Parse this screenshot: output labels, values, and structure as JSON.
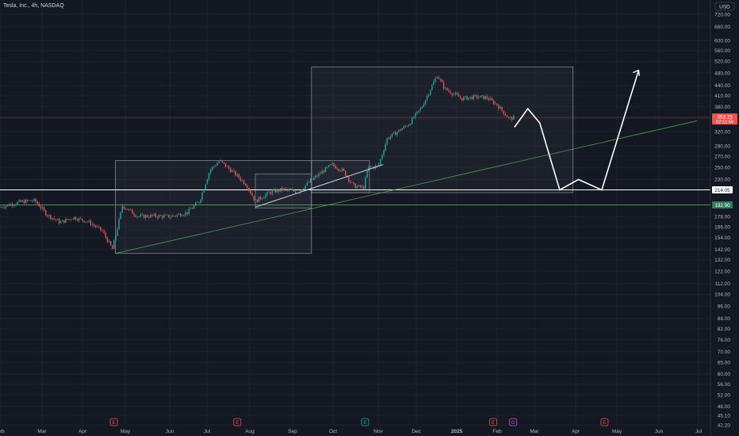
{
  "symbol": {
    "title": "Tesla, Inc., 4h, NASDAQ"
  },
  "currency_button": "USD",
  "colors": {
    "background": "#141823",
    "up": "#26a69a",
    "down": "#ef5350",
    "annotation": "#ffffff",
    "trendline": "#4caf50",
    "box_fill": "rgba(120,123,134,0.08)",
    "box_stroke": "#9598a1"
  },
  "price_tags": {
    "current": {
      "price": "353.15",
      "countdown": "02:11:56",
      "color": "#ef5350"
    },
    "horizontal_level": {
      "price": "214.05"
    },
    "support_level": {
      "price": "192.90",
      "color": "#2e7d5b"
    }
  },
  "chart_data": {
    "type": "candlestick",
    "title": "Tesla, Inc., 4h, NASDAQ",
    "y_axis": {
      "scale": "log",
      "tick_labels": [
        "720.00",
        "660.00",
        "600.00",
        "560.00",
        "520.00",
        "480.00",
        "440.00",
        "410.00",
        "380.00",
        "350.00",
        "320.00",
        "290.00",
        "270.00",
        "250.00",
        "230.00",
        "214.05",
        "192.90",
        "178.00",
        "166.00",
        "154.00",
        "142.00",
        "132.00",
        "122.00",
        "112.00",
        "104.00",
        "96.00",
        "88.00",
        "82.00",
        "76.00",
        "70.00",
        "65.00",
        "60.00",
        "56.00",
        "52.00",
        "48.00",
        "45.10",
        "42.20"
      ],
      "range": [
        41,
        770
      ]
    },
    "x_axis": {
      "tick_labels": [
        "Feb",
        "Mar",
        "Apr",
        "May",
        "Jun",
        "Jul",
        "Aug",
        "Sep",
        "Oct",
        "Nov",
        "Dec",
        "2025",
        "Feb",
        "Mar",
        "Apr",
        "May",
        "Jun",
        "Jul"
      ]
    },
    "price_path": [
      [
        "2024-02-01",
        190
      ],
      [
        "2024-02-15",
        197
      ],
      [
        "2024-02-25",
        199
      ],
      [
        "2024-03-05",
        180
      ],
      [
        "2024-03-15",
        171
      ],
      [
        "2024-03-25",
        177
      ],
      [
        "2024-04-05",
        172
      ],
      [
        "2024-04-15",
        161
      ],
      [
        "2024-04-22",
        142
      ],
      [
        "2024-04-29",
        192
      ],
      [
        "2024-05-10",
        178
      ],
      [
        "2024-05-20",
        179
      ],
      [
        "2024-06-01",
        178
      ],
      [
        "2024-06-15",
        183
      ],
      [
        "2024-06-25",
        198
      ],
      [
        "2024-07-03",
        245
      ],
      [
        "2024-07-10",
        262
      ],
      [
        "2024-07-20",
        242
      ],
      [
        "2024-07-30",
        221
      ],
      [
        "2024-08-05",
        198
      ],
      [
        "2024-08-15",
        210
      ],
      [
        "2024-08-25",
        215
      ],
      [
        "2024-09-05",
        211
      ],
      [
        "2024-09-15",
        229
      ],
      [
        "2024-09-30",
        255
      ],
      [
        "2024-10-08",
        244
      ],
      [
        "2024-10-15",
        220
      ],
      [
        "2024-10-22",
        217
      ],
      [
        "2024-10-25",
        250
      ],
      [
        "2024-11-01",
        252
      ],
      [
        "2024-11-08",
        305
      ],
      [
        "2024-11-15",
        318
      ],
      [
        "2024-11-25",
        337
      ],
      [
        "2024-12-05",
        378
      ],
      [
        "2024-12-17",
        473
      ],
      [
        "2024-12-23",
        430
      ],
      [
        "2025-01-05",
        402
      ],
      [
        "2025-01-15",
        407
      ],
      [
        "2025-01-24",
        405
      ],
      [
        "2025-02-01",
        385
      ],
      [
        "2025-02-10",
        350
      ],
      [
        "2025-02-14",
        353
      ]
    ],
    "markers": [
      {
        "date": "2024-04-23",
        "label": "E"
      },
      {
        "date": "2024-07-23",
        "label": "E"
      },
      {
        "date": "2024-10-23",
        "label": "E"
      },
      {
        "date": "2025-01-29",
        "label": "E"
      },
      {
        "date": "2025-02-13",
        "label": "D"
      },
      {
        "date": "2025-04-22",
        "label": "E"
      }
    ],
    "projection": [
      [
        "2025-02-14",
        330
      ],
      [
        "2025-02-24",
        375
      ],
      [
        "2025-03-05",
        340
      ],
      [
        "2025-03-20",
        214
      ],
      [
        "2025-04-03",
        230
      ],
      [
        "2025-04-20",
        214
      ],
      [
        "2025-05-17",
        489
      ]
    ],
    "trendlines": [
      {
        "from": [
          "2024-04-24",
          138
        ],
        "to": [
          "2025-06-30",
          345
        ]
      },
      {
        "from": [
          "2024-08-05",
          190
        ],
        "to": [
          "2024-11-05",
          255
        ]
      }
    ],
    "horizontal_levels": [
      214.05,
      192.9,
      353.15
    ],
    "boxes": [
      {
        "from": [
          "2024-04-24",
          138
        ],
        "to": [
          "2024-09-15",
          262
        ]
      },
      {
        "from": [
          "2024-08-05",
          189
        ],
        "to": [
          "2024-09-15",
          239
        ]
      },
      {
        "from": [
          "2024-09-15",
          210
        ],
        "to": [
          "2024-10-26",
          262
        ]
      },
      {
        "from": [
          "2024-09-15",
          210
        ],
        "to": [
          "2025-03-30",
          500
        ]
      }
    ]
  }
}
